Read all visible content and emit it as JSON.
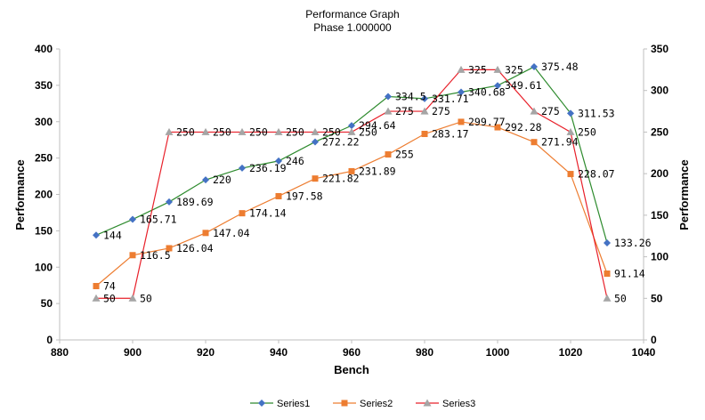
{
  "chart_data": {
    "type": "line",
    "title": "Performance Graph",
    "subtitle": "Phase 1.000000",
    "xlabel": "Bench",
    "ylabel": "Performance",
    "y2label": "Performance",
    "xlim": [
      880,
      1040
    ],
    "xticks": [
      880,
      900,
      920,
      940,
      960,
      980,
      1000,
      1020,
      1040
    ],
    "ylim": [
      0,
      400
    ],
    "yticks": [
      0,
      50,
      100,
      150,
      200,
      250,
      300,
      350,
      400
    ],
    "y2lim": [
      0,
      350
    ],
    "y2ticks": [
      0,
      50,
      100,
      150,
      200,
      250,
      300,
      350
    ],
    "legend_position": "bottom",
    "series": [
      {
        "name": "Series1",
        "color": "#2e8b2e",
        "marker": "diamond",
        "marker_color": "#4472c4",
        "axis": "left",
        "x": [
          890,
          900,
          910,
          920,
          930,
          940,
          950,
          960,
          970,
          980,
          990,
          1000,
          1010,
          1020,
          1030
        ],
        "values": [
          144,
          165.71,
          189.69,
          220,
          236.19,
          246,
          272.22,
          294.64,
          334.5,
          331.71,
          340.68,
          349.61,
          375.48,
          311.53,
          133.26
        ],
        "labels": [
          "144",
          "165.71",
          "189.69",
          "220",
          "236.19",
          "246",
          "272.22",
          "294.64",
          "334.5",
          "331.71",
          "340.68",
          "349.61",
          "375.48",
          "311.53",
          "133.26"
        ]
      },
      {
        "name": "Series2",
        "color": "#ed7d31",
        "marker": "square",
        "marker_color": "#ed7d31",
        "axis": "left",
        "x": [
          890,
          900,
          910,
          920,
          930,
          940,
          950,
          960,
          970,
          980,
          990,
          1000,
          1010,
          1020,
          1030
        ],
        "values": [
          74,
          116.5,
          126.04,
          147.04,
          174.14,
          197.58,
          221.82,
          231.89,
          255,
          283.17,
          299.77,
          292.28,
          271.94,
          228.07,
          91.14
        ],
        "labels": [
          "74",
          "116.5",
          "126.04",
          "147.04",
          "174.14",
          "197.58",
          "221.82",
          "231.89",
          "255",
          "283.17",
          "299.77",
          "292.28",
          "271.94",
          "228.07",
          "91.14"
        ]
      },
      {
        "name": "Series3",
        "color": "#e8202a",
        "marker": "triangle",
        "marker_color": "#a5a5a5",
        "axis": "right",
        "x": [
          890,
          900,
          910,
          920,
          930,
          940,
          950,
          960,
          970,
          980,
          990,
          1000,
          1010,
          1020,
          1030
        ],
        "values": [
          50,
          50,
          250,
          250,
          250,
          250,
          250,
          250,
          275,
          275,
          325,
          325,
          275,
          250,
          50
        ],
        "labels": [
          "50",
          "50",
          "250",
          "250",
          "250",
          "250",
          "250",
          "250",
          "275",
          "275",
          "325",
          "325",
          "275",
          "250",
          "50"
        ]
      }
    ]
  }
}
